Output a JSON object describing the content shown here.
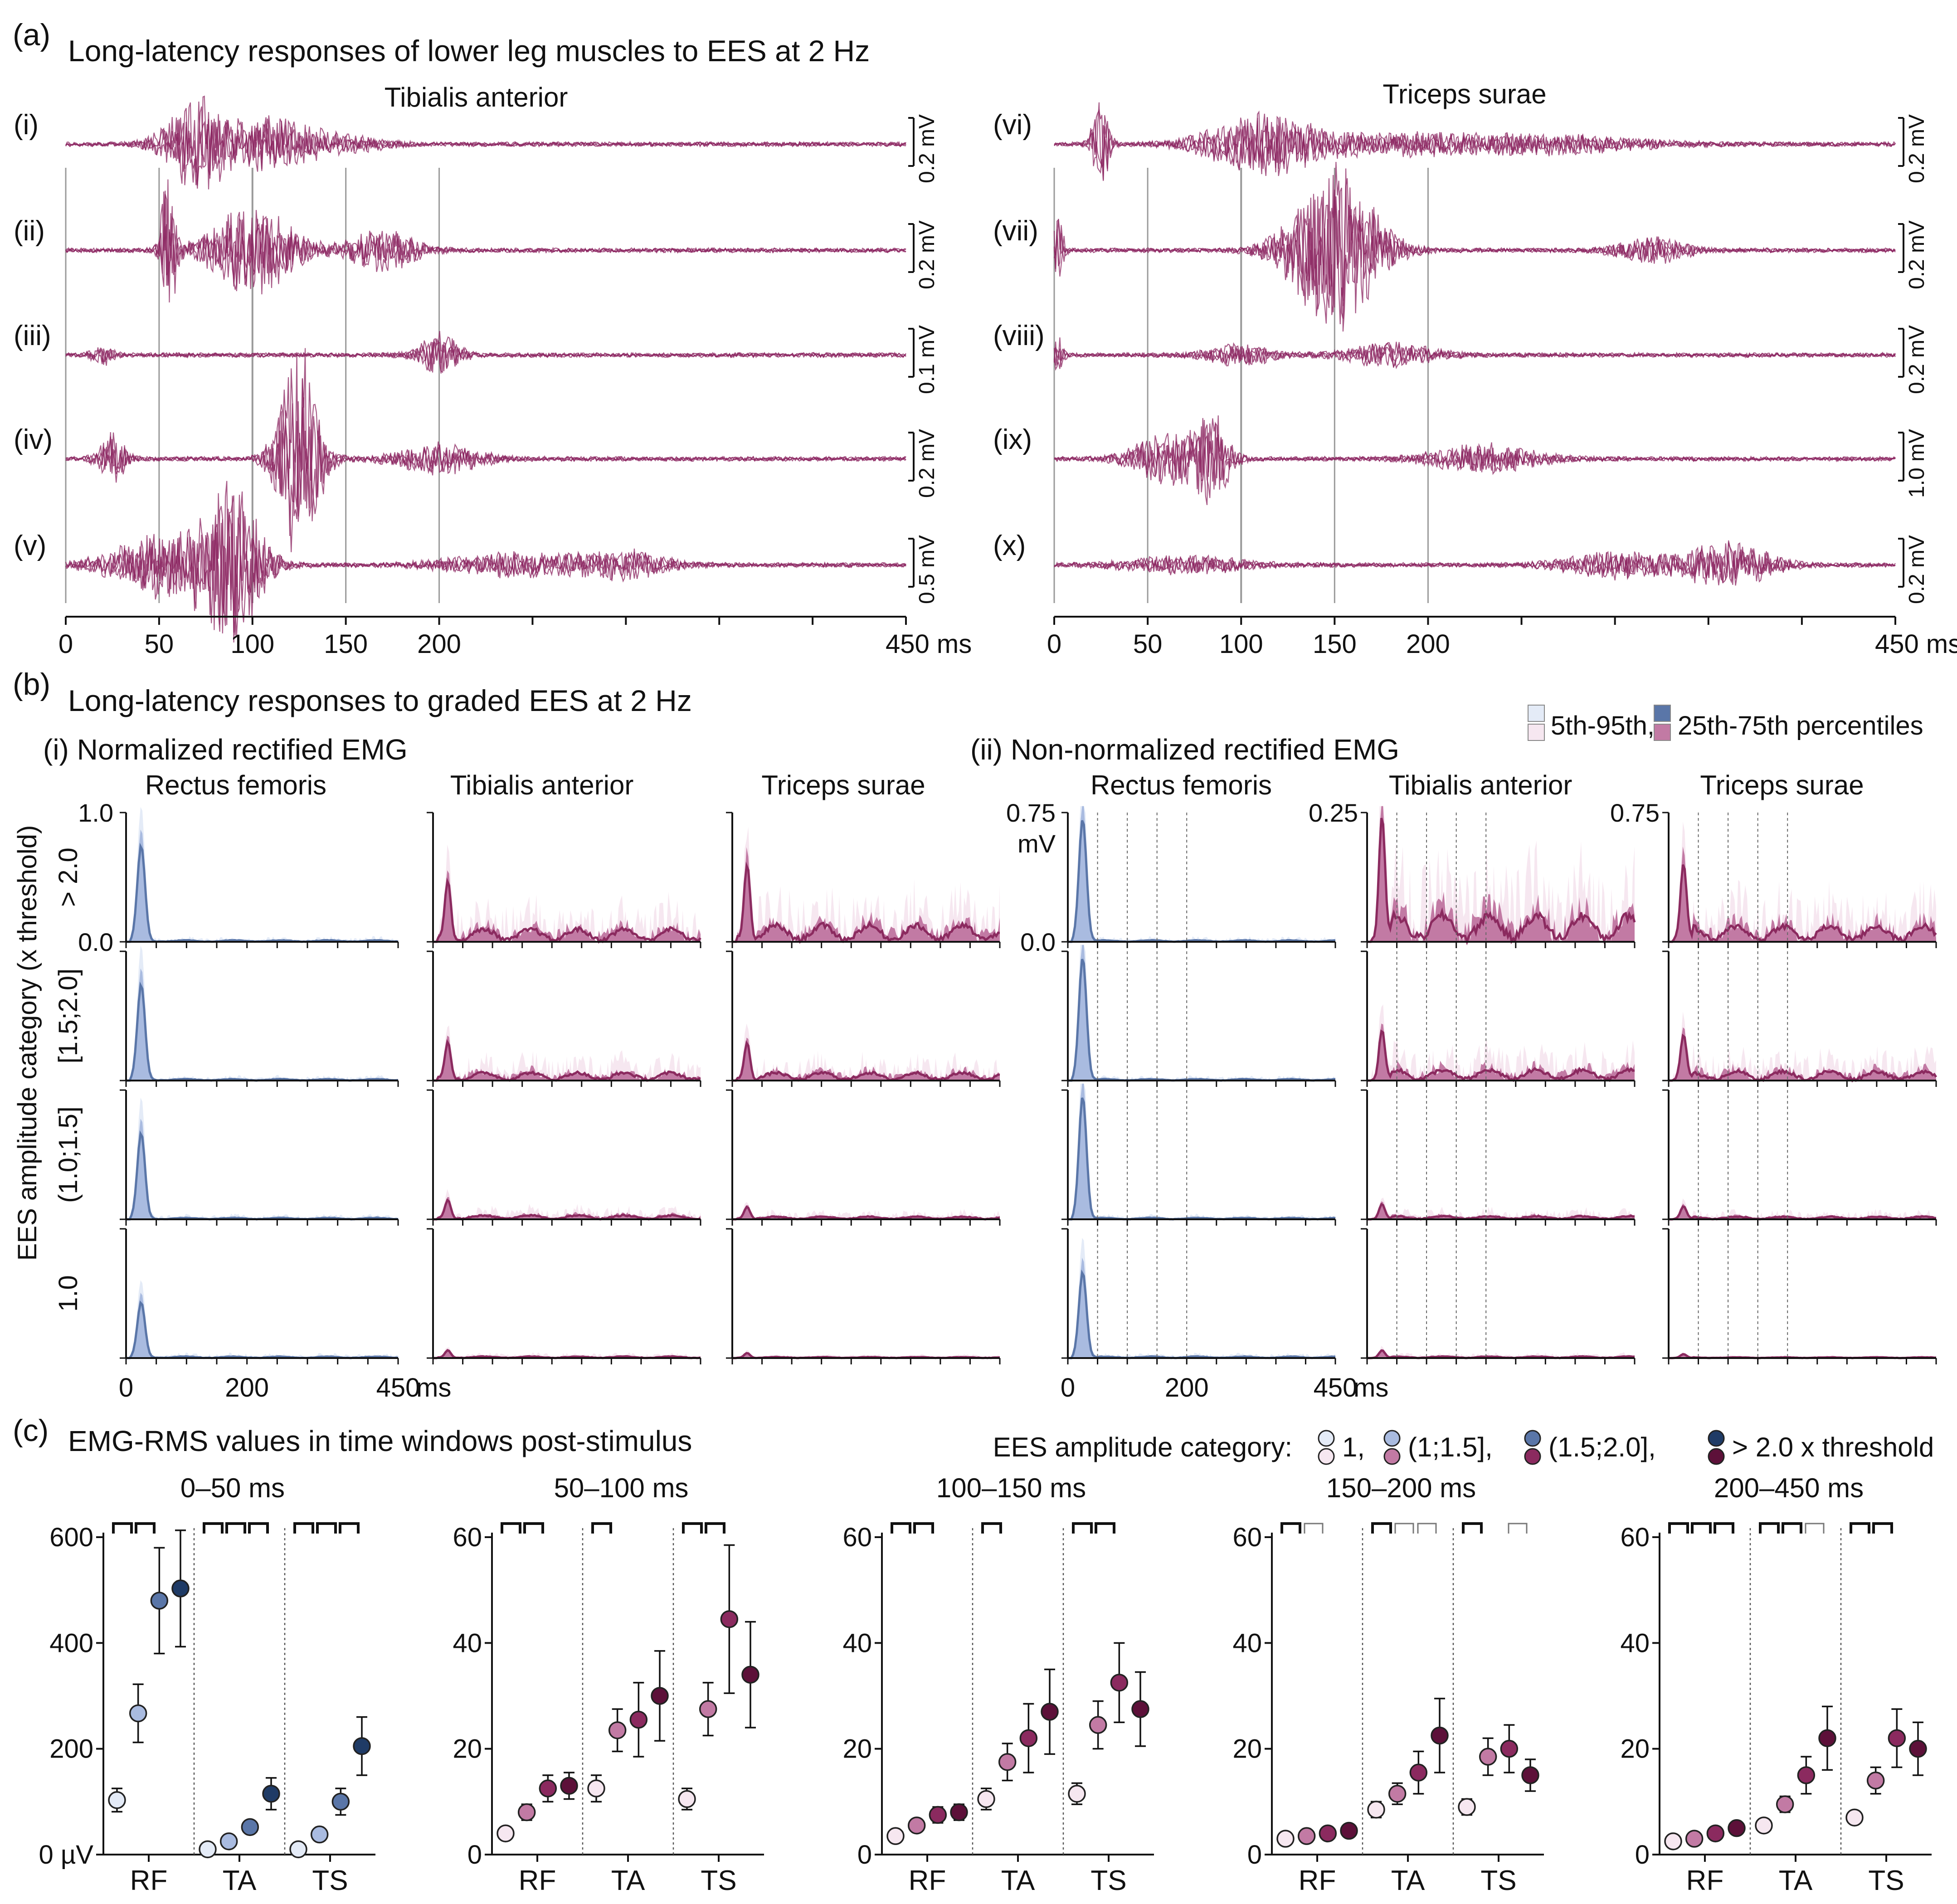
{
  "colors": {
    "trace": "#8b2460",
    "blue_dark": "#1f3b66",
    "blue_mid": "#5a76a8",
    "blue_light": "#a9bbe0",
    "blue_pale": "#e4ebf7",
    "mag_dark": "#5d1039",
    "mag_mid": "#8b2a5f",
    "mag_light": "#c27aa4",
    "mag_pale": "#f6e7f0",
    "grid": "#9a9a9a"
  },
  "panel_a": {
    "label": "(a)",
    "title": "Long-latency responses of lower leg muscles to EES at 2 Hz",
    "left_title": "Tibialis anterior",
    "right_title": "Triceps surae",
    "left_rows": [
      {
        "label": "(i)",
        "scale": "0.2 mV",
        "amp": 1.0
      },
      {
        "label": "(ii)",
        "scale": "0.2 mV",
        "amp": 1.1
      },
      {
        "label": "(iii)",
        "scale": "0.1 mV",
        "amp": 0.8
      },
      {
        "label": "(iv)",
        "scale": "0.2 mV",
        "amp": 1.3
      },
      {
        "label": "(v)",
        "scale": "0.5 mV",
        "amp": 1.0
      }
    ],
    "right_rows": [
      {
        "label": "(vi)",
        "scale": "0.2 mV",
        "amp": 0.9
      },
      {
        "label": "(vii)",
        "scale": "0.2 mV",
        "amp": 1.1
      },
      {
        "label": "(viii)",
        "scale": "0.2 mV",
        "amp": 0.7
      },
      {
        "label": "(ix)",
        "scale": "1.0 mV",
        "amp": 0.9
      },
      {
        "label": "(x)",
        "scale": "0.2 mV",
        "amp": 0.7
      }
    ],
    "x_ticks": [
      "0",
      "50",
      "100",
      "150",
      "200",
      "450 ms"
    ],
    "x_tick_values": [
      0,
      50,
      100,
      150,
      200,
      450
    ]
  },
  "panel_b": {
    "label": "(b)",
    "title": "Long-latency responses to graded EES at 2 Hz",
    "legend": {
      "outer": "5th-95th,",
      "inner": "25th-75th percentiles",
      "sup1": "th",
      "sup2": "th",
      "sup3": "th",
      "sup4": "th"
    },
    "sub_i": "(i) Normalized rectified EMG",
    "sub_ii": "(ii) Non-normalized rectified EMG",
    "muscles": [
      "Rectus femoris",
      "Tibialis anterior",
      "Triceps surae"
    ],
    "y_axis_title": "EES amplitude category (x threshold)",
    "row_labels": [
      "> 2.0",
      "[1.5;2.0]",
      "(1.0;1.5]",
      "1.0"
    ],
    "norm_ticks": [
      "1.0",
      "0.0"
    ],
    "nonnorm_ticks": [
      [
        "0.75",
        "0.0"
      ],
      [
        "0.25"
      ],
      [
        "0.75"
      ]
    ],
    "nonnorm_unit": "mV",
    "x_ticks": [
      "0",
      "200",
      "450"
    ],
    "x_unit": "ms",
    "row_peaks": [
      [
        0.78,
        0.48,
        0.62
      ],
      [
        0.78,
        0.3,
        0.3
      ],
      [
        0.7,
        0.15,
        0.1
      ],
      [
        0.45,
        0.06,
        0.04
      ]
    ],
    "row_peaks_nonnorm": [
      [
        1.0,
        1.0,
        0.6
      ],
      [
        1.0,
        0.4,
        0.35
      ],
      [
        1.0,
        0.12,
        0.1
      ],
      [
        0.7,
        0.06,
        0.03
      ]
    ]
  },
  "panel_c": {
    "label": "(c)",
    "title": "EMG-RMS values in time windows post-stimulus",
    "legend_label": "EES amplitude category:",
    "legend_items": [
      "1,",
      "(1;1.5],",
      "(1.5;2.0],",
      "> 2.0 x threshold"
    ],
    "groups": [
      "RF",
      "TA",
      "TS"
    ],
    "chart_data": [
      {
        "type": "scatter",
        "title": "0–50 ms",
        "ylim": [
          0,
          600
        ],
        "yticks": [
          "600",
          "400",
          "200",
          "0 µV"
        ],
        "ytick_values": [
          600,
          400,
          200,
          0
        ],
        "palette": "blue",
        "series": {
          "RF": [
            {
              "v": 103,
              "e": 22
            },
            {
              "v": 267,
              "e": 55
            },
            {
              "v": 480,
              "e": 100
            },
            {
              "v": 503,
              "e": 110
            }
          ],
          "TA": [
            {
              "v": 10,
              "e": 3
            },
            {
              "v": 25,
              "e": 5
            },
            {
              "v": 52,
              "e": 10
            },
            {
              "v": 115,
              "e": 30
            }
          ],
          "TS": [
            {
              "v": 10,
              "e": 3
            },
            {
              "v": 38,
              "e": 8
            },
            {
              "v": 100,
              "e": 25
            },
            {
              "v": 205,
              "e": 55
            }
          ]
        },
        "brackets": [
          [
            1,
            1,
            0
          ],
          [
            1,
            1,
            1
          ],
          [
            1,
            1,
            1
          ]
        ]
      },
      {
        "type": "scatter",
        "title": "50–100 ms",
        "ylim": [
          0,
          60
        ],
        "yticks": [
          "60",
          "40",
          "20",
          "0"
        ],
        "ytick_values": [
          60,
          40,
          20,
          0
        ],
        "palette": "mag",
        "series": {
          "RF": [
            {
              "v": 4,
              "e": 1
            },
            {
              "v": 8,
              "e": 1.5
            },
            {
              "v": 12.5,
              "e": 2.5
            },
            {
              "v": 13,
              "e": 2.5
            }
          ],
          "TA": [
            {
              "v": 12.5,
              "e": 2.5
            },
            {
              "v": 23.5,
              "e": 4
            },
            {
              "v": 25.5,
              "e": 7
            },
            {
              "v": 30,
              "e": 8.5
            }
          ],
          "TS": [
            {
              "v": 10.5,
              "e": 2
            },
            {
              "v": 27.5,
              "e": 5
            },
            {
              "v": 44.5,
              "e": 14
            },
            {
              "v": 34,
              "e": 10
            }
          ]
        },
        "brackets": [
          [
            1,
            1,
            0
          ],
          [
            1,
            0,
            0
          ],
          [
            1,
            1,
            0
          ]
        ]
      },
      {
        "type": "scatter",
        "title": "100–150 ms",
        "ylim": [
          0,
          60
        ],
        "yticks": [
          "60",
          "40",
          "20",
          "0"
        ],
        "ytick_values": [
          60,
          40,
          20,
          0
        ],
        "palette": "mag",
        "series": {
          "RF": [
            {
              "v": 3.5,
              "e": 1
            },
            {
              "v": 5.5,
              "e": 1
            },
            {
              "v": 7.5,
              "e": 1.5
            },
            {
              "v": 8,
              "e": 1.5
            }
          ],
          "TA": [
            {
              "v": 10.5,
              "e": 2
            },
            {
              "v": 17.5,
              "e": 3.5
            },
            {
              "v": 22,
              "e": 6.5
            },
            {
              "v": 27,
              "e": 8
            }
          ],
          "TS": [
            {
              "v": 11.5,
              "e": 2
            },
            {
              "v": 24.5,
              "e": 4.5
            },
            {
              "v": 32.5,
              "e": 7.5
            },
            {
              "v": 27.5,
              "e": 7
            }
          ]
        },
        "brackets": [
          [
            1,
            1,
            0
          ],
          [
            1,
            0,
            0
          ],
          [
            1,
            1,
            0
          ]
        ]
      },
      {
        "type": "scatter",
        "title": "150–200 ms",
        "ylim": [
          0,
          60
        ],
        "yticks": [
          "60",
          "40",
          "20",
          "0"
        ],
        "ytick_values": [
          60,
          40,
          20,
          0
        ],
        "palette": "mag",
        "series": {
          "RF": [
            {
              "v": 3,
              "e": 0.5
            },
            {
              "v": 3.5,
              "e": 0.7
            },
            {
              "v": 4,
              "e": 0.8
            },
            {
              "v": 4.5,
              "e": 0.8
            }
          ],
          "TA": [
            {
              "v": 8.5,
              "e": 1.5
            },
            {
              "v": 11.5,
              "e": 2
            },
            {
              "v": 15.5,
              "e": 4
            },
            {
              "v": 22.5,
              "e": 7
            }
          ],
          "TS": [
            {
              "v": 9,
              "e": 1.5
            },
            {
              "v": 18.5,
              "e": 3.5
            },
            {
              "v": 20,
              "e": 4.5
            },
            {
              "v": 15,
              "e": 3
            }
          ]
        },
        "brackets": [
          [
            1,
            2,
            0
          ],
          [
            1,
            2,
            2
          ],
          [
            1,
            0,
            2
          ]
        ]
      },
      {
        "type": "scatter",
        "title": "200–450 ms",
        "ylim": [
          0,
          60
        ],
        "yticks": [
          "60",
          "40",
          "20",
          "0"
        ],
        "ytick_values": [
          60,
          40,
          20,
          0
        ],
        "palette": "mag",
        "series": {
          "RF": [
            {
              "v": 2.5,
              "e": 0.5
            },
            {
              "v": 3,
              "e": 0.5
            },
            {
              "v": 4,
              "e": 0.7
            },
            {
              "v": 5,
              "e": 1
            }
          ],
          "TA": [
            {
              "v": 5.5,
              "e": 1
            },
            {
              "v": 9.5,
              "e": 1.5
            },
            {
              "v": 15,
              "e": 3.5
            },
            {
              "v": 22,
              "e": 6
            }
          ],
          "TS": [
            {
              "v": 7,
              "e": 1
            },
            {
              "v": 14,
              "e": 2.5
            },
            {
              "v": 22,
              "e": 5.5
            },
            {
              "v": 20,
              "e": 5
            }
          ]
        },
        "brackets": [
          [
            1,
            1,
            1
          ],
          [
            1,
            1,
            2
          ],
          [
            1,
            1,
            0
          ]
        ]
      }
    ]
  }
}
